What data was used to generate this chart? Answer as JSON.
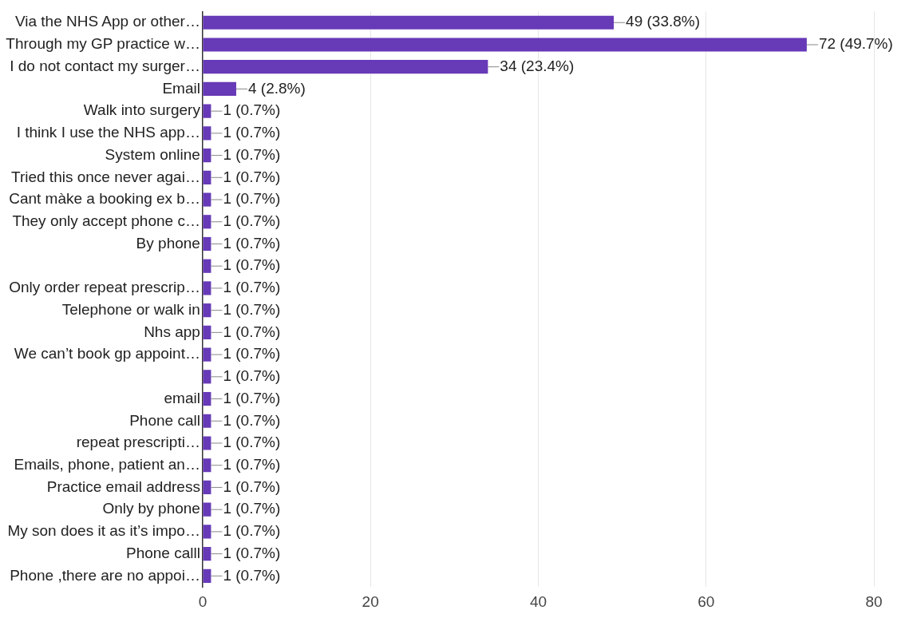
{
  "chart_data": {
    "type": "bar",
    "orientation": "horizontal",
    "categories": [
      "Via the NHS App or other…",
      "Through my GP practice w…",
      "I do not contact my surger…",
      "Email",
      "Walk into surgery",
      "I think I use the NHS app…",
      "System online",
      "Tried this once never agai…",
      "Cant màke a booking ex b…",
      "They only accept phone c…",
      "By phone",
      null,
      "Only order repeat prescrip…",
      "Telephone or walk in",
      "Nhs app",
      "We can’t book gp appoint…",
      null,
      "email",
      "Phone call",
      "repeat prescripti…",
      "Emails, phone, patient an…",
      "Practice email address",
      "Only by phone",
      "My son does it as it’s impo…",
      "Phone calll",
      "Phone ,there are no appoi…"
    ],
    "values": [
      49,
      72,
      34,
      4,
      1,
      1,
      1,
      1,
      1,
      1,
      1,
      1,
      1,
      1,
      1,
      1,
      1,
      1,
      1,
      1,
      1,
      1,
      1,
      1,
      1,
      1
    ],
    "value_labels": [
      "49 (33.8%)",
      "72 (49.7%)",
      "34 (23.4%)",
      "4 (2.8%)",
      "1 (0.7%)",
      "1 (0.7%)",
      "1 (0.7%)",
      "1 (0.7%)",
      "1 (0.7%)",
      "1 (0.7%)",
      "1 (0.7%)",
      "1 (0.7%)",
      "1 (0.7%)",
      "1 (0.7%)",
      "1 (0.7%)",
      "1 (0.7%)",
      "1 (0.7%)",
      "1 (0.7%)",
      "1 (0.7%)",
      "1 (0.7%)",
      "1 (0.7%)",
      "1 (0.7%)",
      "1 (0.7%)",
      "1 (0.7%)",
      "1 (0.7%)",
      "1 (0.7%)"
    ],
    "color": "#673ab7",
    "xlim": [
      0,
      80
    ],
    "xticks": [
      0,
      20,
      40,
      60,
      80
    ],
    "grid": "x",
    "legend": false
  }
}
